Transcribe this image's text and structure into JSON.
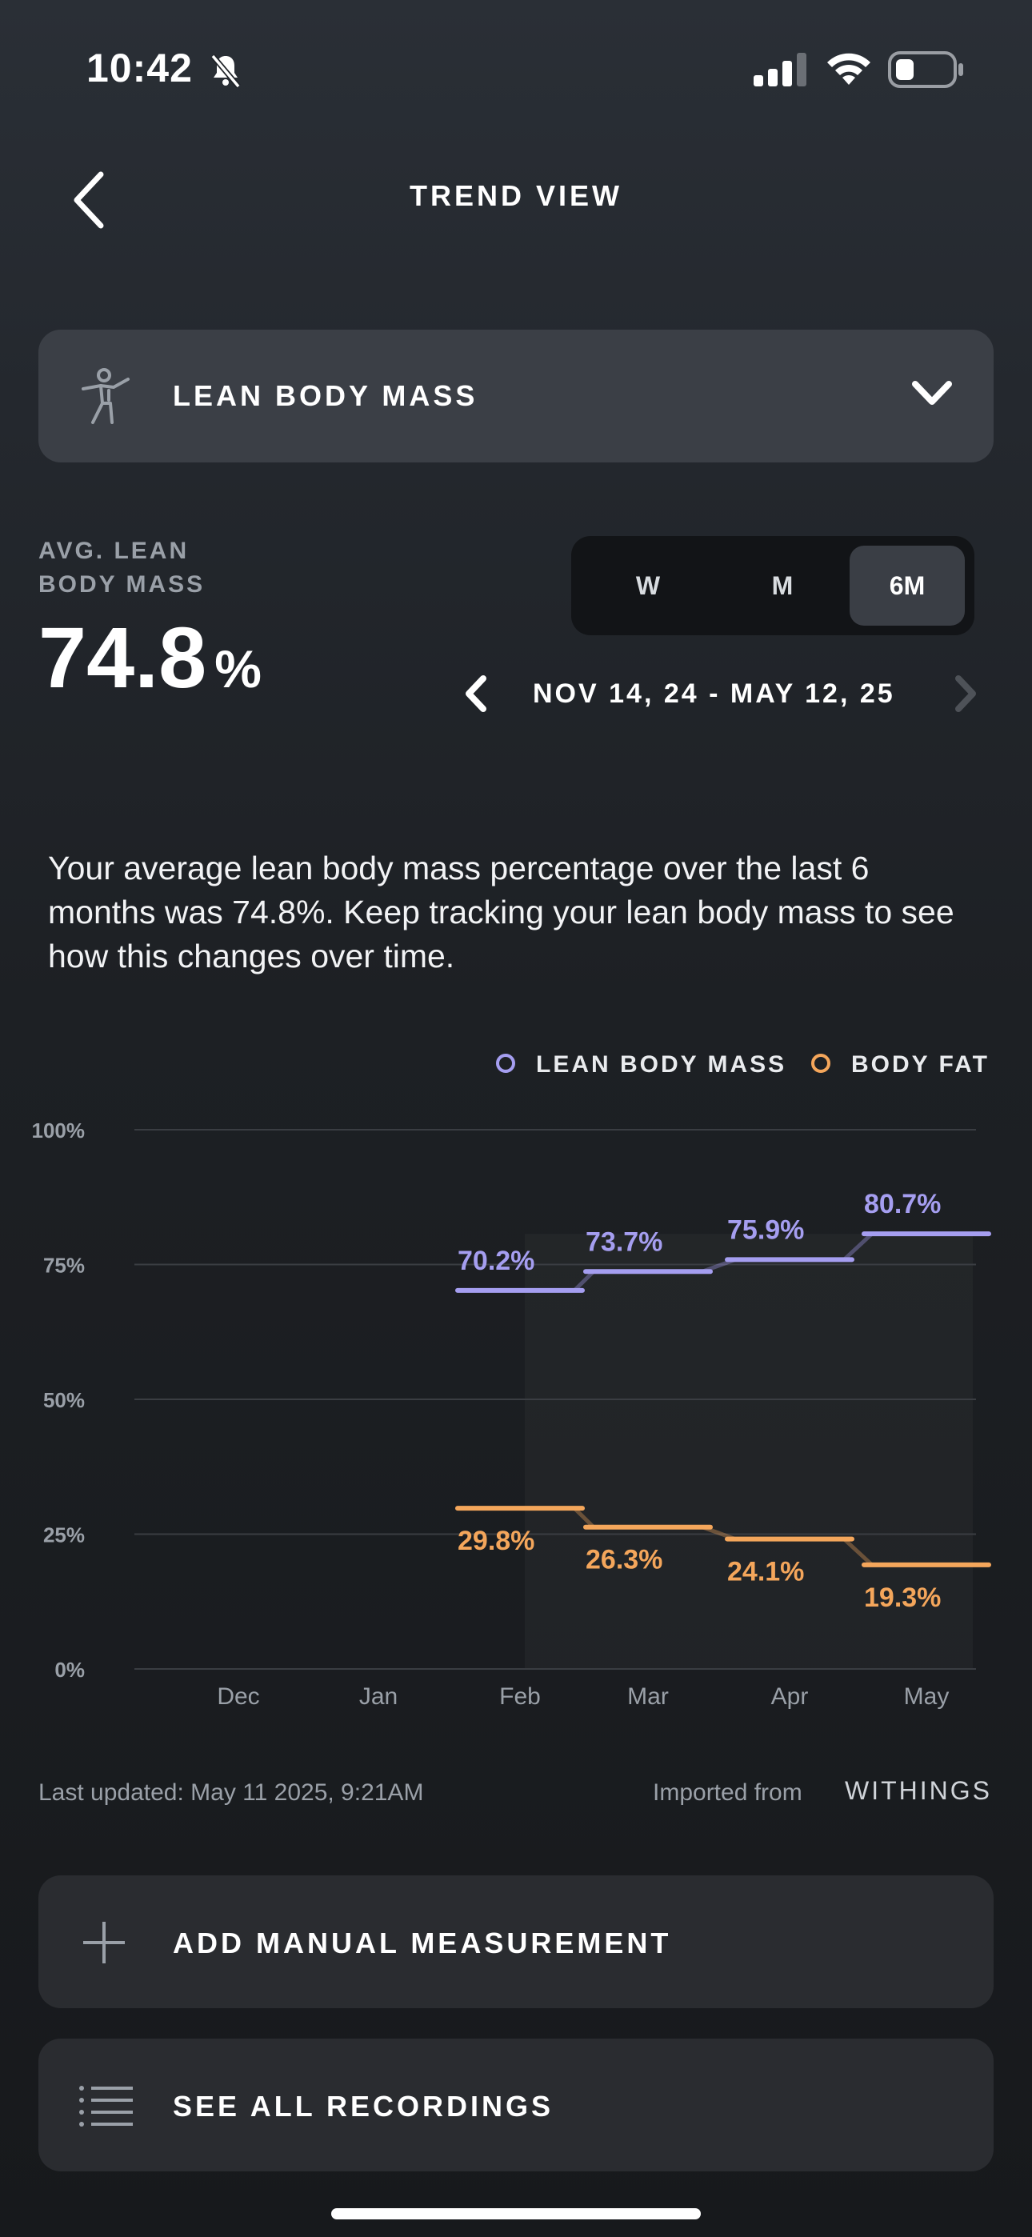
{
  "status_bar": {
    "time": "10:42"
  },
  "header": {
    "title": "TREND VIEW"
  },
  "metric_selector": {
    "label": "LEAN BODY MASS"
  },
  "summary": {
    "avg_label_line1": "AVG. LEAN",
    "avg_label_line2": "BODY MASS",
    "avg_value": "74.8",
    "avg_unit": "%"
  },
  "periods": [
    {
      "label": "W",
      "active": false
    },
    {
      "label": "M",
      "active": false
    },
    {
      "label": "6M",
      "active": true
    }
  ],
  "date_range": "NOV 14, 24 - MAY 12, 25",
  "description": "Your average lean body mass percentage over the last 6 months was 74.8%. Keep tracking your lean body mass to see how this changes over time.",
  "legend": {
    "lean": "LEAN BODY MASS",
    "fat": "BODY FAT"
  },
  "colors": {
    "lean": "#a59ef0",
    "fat": "#f4a65b",
    "grid": "#3a3d42",
    "axis_text": "#9aa0a8"
  },
  "chart_data": {
    "type": "line",
    "ylim": [
      0,
      100
    ],
    "y_ticks": [
      "0%",
      "25%",
      "50%",
      "75%",
      "100%"
    ],
    "x_ticks": [
      "Dec",
      "Jan",
      "Feb",
      "Mar",
      "Apr",
      "May"
    ],
    "series": [
      {
        "name": "LEAN BODY MASS",
        "color": "#a59ef0",
        "monthly_avg": [
          70.2,
          73.7,
          75.9,
          80.7
        ],
        "labels": [
          "70.2%",
          "73.7%",
          "75.9%",
          "80.7%"
        ]
      },
      {
        "name": "BODY FAT",
        "color": "#f4a65b",
        "monthly_avg": [
          29.8,
          26.3,
          24.1,
          19.3
        ],
        "labels": [
          "29.8%",
          "26.3%",
          "24.1%",
          "19.3%"
        ]
      }
    ],
    "avg_months": [
      "Feb",
      "Mar",
      "Apr",
      "May"
    ],
    "grid": true
  },
  "footer": {
    "last_updated": "Last updated: May 11 2025, 9:21AM",
    "imported_from": "Imported from",
    "source": "WITHINGS"
  },
  "actions": {
    "add": "ADD MANUAL MEASUREMENT",
    "see_all": "SEE ALL RECORDINGS"
  }
}
